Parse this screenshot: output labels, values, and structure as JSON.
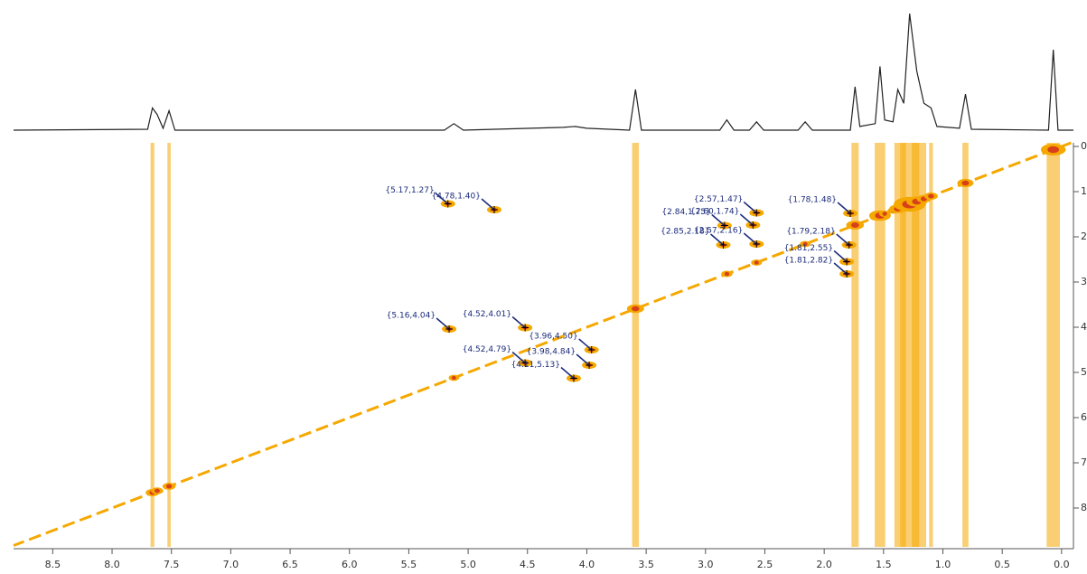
{
  "chart_data": {
    "type": "nmr2d",
    "xlim": [
      8.83,
      -0.1
    ],
    "ylim": [
      -0.08,
      8.86
    ],
    "xticks": [
      8.5,
      {
        "value": 8,
        "label": "8.0"
      },
      7.5,
      {
        "value": 7,
        "label": "7.0"
      },
      6.5,
      {
        "value": 6,
        "label": "6.0"
      },
      5.5,
      {
        "value": 5,
        "label": "5.0"
      },
      4.5,
      {
        "value": 4,
        "label": "4.0"
      },
      3.5,
      {
        "value": 3,
        "label": "3.0"
      },
      2.5,
      {
        "value": 2,
        "label": "2.0"
      },
      1.5,
      {
        "value": 1,
        "label": "1.0"
      },
      0.5,
      {
        "value": 0,
        "label": "0.0"
      }
    ],
    "yticks": [
      0,
      1,
      2,
      3,
      4,
      5,
      6,
      7,
      8
    ],
    "color": "#f5a800",
    "core_color": "#d8401a",
    "label_color": "#1a2a7a",
    "projection": {
      "ylim": [
        0,
        130
      ],
      "color": "#222222",
      "x": [
        8.83,
        7.7,
        7.66,
        7.62,
        7.57,
        7.52,
        7.47,
        5.2,
        5.12,
        5.04,
        4.2,
        4.1,
        4.0,
        3.64,
        3.59,
        3.54,
        2.88,
        2.82,
        2.76,
        2.63,
        2.57,
        2.51,
        2.22,
        2.16,
        2.1,
        1.78,
        1.74,
        1.7,
        1.57,
        1.53,
        1.49,
        1.42,
        1.38,
        1.33,
        1.28,
        1.22,
        1.16,
        1.1,
        1.05,
        0.86,
        0.81,
        0.76,
        0.11,
        0.07,
        0.03,
        -0.1
      ],
      "values": [
        1,
        2,
        25,
        18,
        3,
        22,
        1,
        1,
        8,
        1,
        4,
        5,
        3,
        1,
        45,
        1,
        1,
        12,
        1,
        1,
        10,
        1,
        1,
        10,
        1,
        1,
        48,
        5,
        8,
        70,
        12,
        10,
        45,
        30,
        127,
        65,
        30,
        25,
        5,
        3,
        40,
        2,
        1,
        88,
        1,
        1
      ]
    },
    "peaks": [
      {
        "label": "{5.17,1.27}",
        "x": 5.17,
        "y": 1.27
      },
      {
        "label": "{4.78,1.40}",
        "x": 4.78,
        "y": 1.4
      },
      {
        "label": "{2.57,1.47}",
        "x": 2.57,
        "y": 1.47
      },
      {
        "label": "{1.78,1.48}",
        "x": 1.78,
        "y": 1.48
      },
      {
        "label": "{2.84,1.75}",
        "x": 2.84,
        "y": 1.75
      },
      {
        "label": "{2.60,1.74}",
        "x": 2.6,
        "y": 1.74
      },
      {
        "label": "{2.85,2.18}",
        "x": 2.85,
        "y": 2.18
      },
      {
        "label": "{2.57,2.16}",
        "x": 2.57,
        "y": 2.16
      },
      {
        "label": "{1.79,2.18}",
        "x": 1.79,
        "y": 2.18
      },
      {
        "label": "{1.81,2.55}",
        "x": 1.81,
        "y": 2.55
      },
      {
        "label": "{1.81,2.82}",
        "x": 1.81,
        "y": 2.82
      },
      {
        "label": "{5.16,4.04}",
        "x": 5.16,
        "y": 4.04
      },
      {
        "label": "{4.52,4.01}",
        "x": 4.52,
        "y": 4.01
      },
      {
        "label": "{3.96,4.50}",
        "x": 3.96,
        "y": 4.5
      },
      {
        "label": "{4.52,4.79}",
        "x": 4.52,
        "y": 4.79
      },
      {
        "label": "{3.98,4.84}",
        "x": 3.98,
        "y": 4.84
      },
      {
        "label": "{4.11,5.13}",
        "x": 4.11,
        "y": 5.13
      }
    ]
  }
}
